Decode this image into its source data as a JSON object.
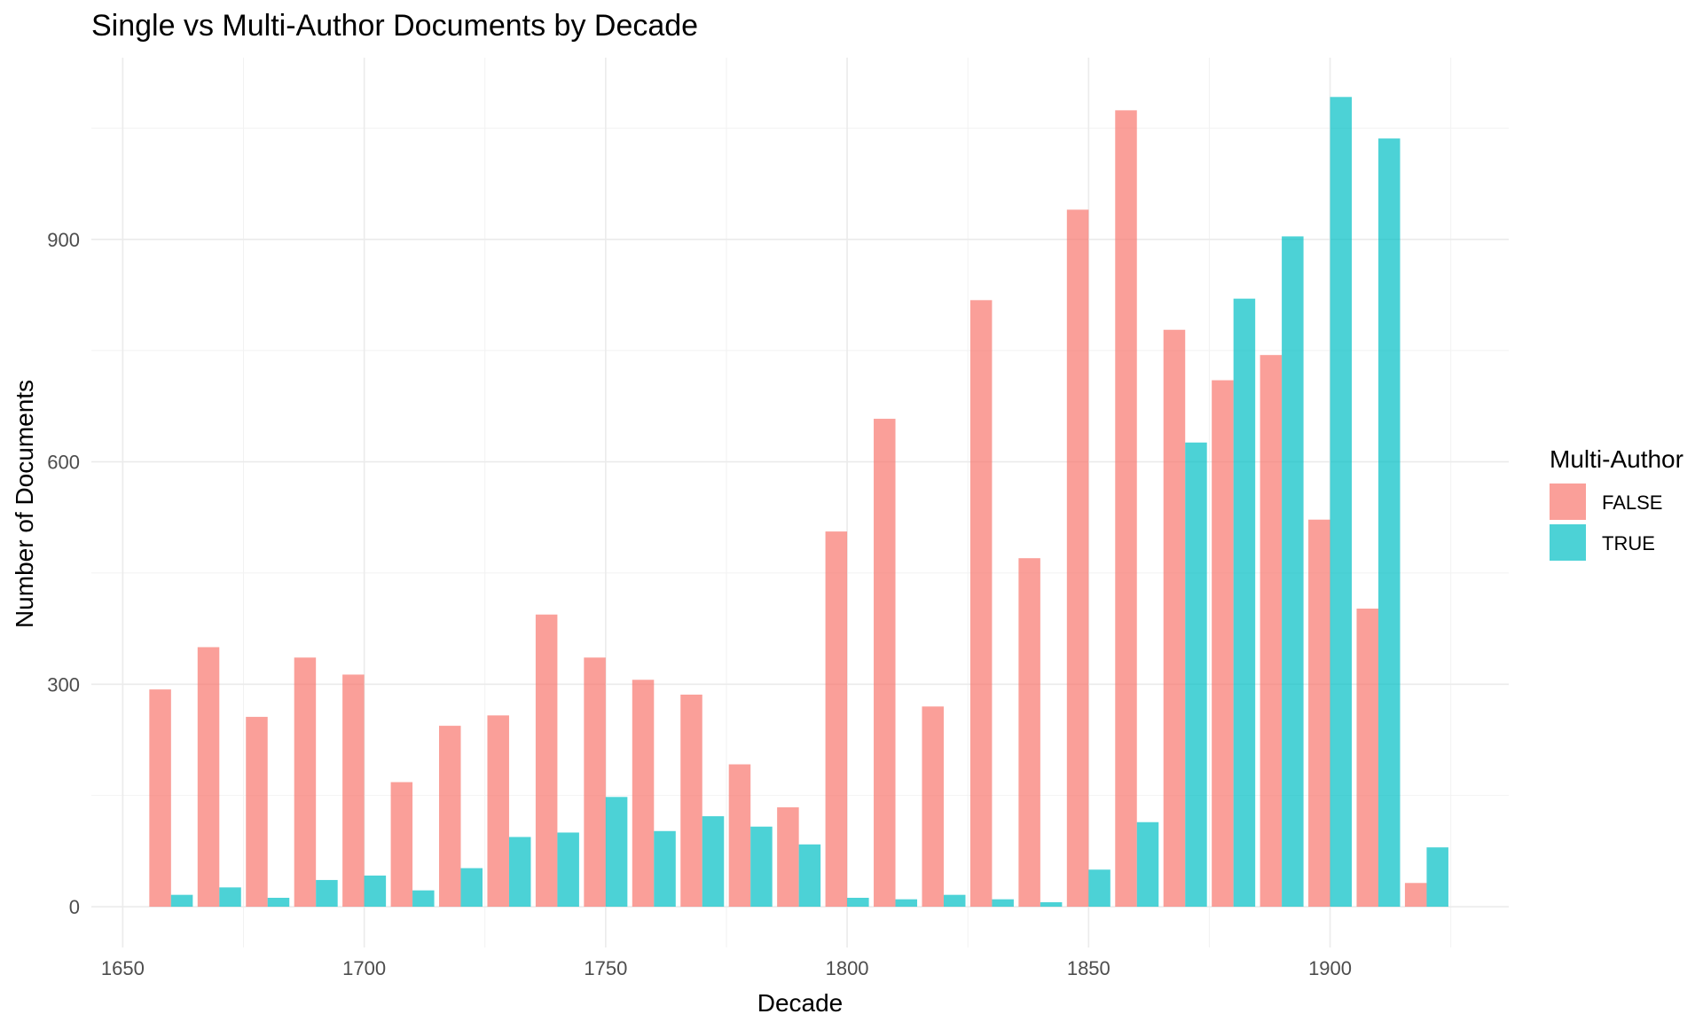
{
  "chart_data": {
    "type": "bar",
    "title": "Single vs Multi-Author Documents by Decade",
    "xlabel": "Decade",
    "ylabel": "Number of Documents",
    "x_ticks": [
      1650,
      1700,
      1750,
      1800,
      1850,
      1900
    ],
    "y_ticks": [
      0,
      300,
      600,
      900
    ],
    "xlim": [
      1643.5,
      1937
    ],
    "ylim": [
      -55,
      1145
    ],
    "grid": true,
    "legend": {
      "title": "Multi-Author",
      "position": "right"
    },
    "categories": [
      1660,
      1670,
      1680,
      1690,
      1700,
      1710,
      1720,
      1730,
      1740,
      1750,
      1760,
      1770,
      1780,
      1790,
      1800,
      1810,
      1820,
      1830,
      1840,
      1850,
      1860,
      1870,
      1880,
      1890,
      1900,
      1910,
      1920
    ],
    "series": [
      {
        "name": "FALSE",
        "color": "#F8766D",
        "values": [
          293,
          350,
          256,
          336,
          313,
          168,
          244,
          258,
          394,
          336,
          306,
          286,
          192,
          134,
          506,
          658,
          270,
          818,
          470,
          940,
          1074,
          778,
          710,
          744,
          522,
          402,
          32
        ]
      },
      {
        "name": "TRUE",
        "color": "#00BFC4",
        "values": [
          16,
          26,
          12,
          36,
          42,
          22,
          52,
          94,
          100,
          148,
          102,
          122,
          108,
          84,
          12,
          10,
          16,
          10,
          6,
          50,
          114,
          626,
          820,
          904,
          1092,
          1036,
          80
        ]
      }
    ]
  }
}
